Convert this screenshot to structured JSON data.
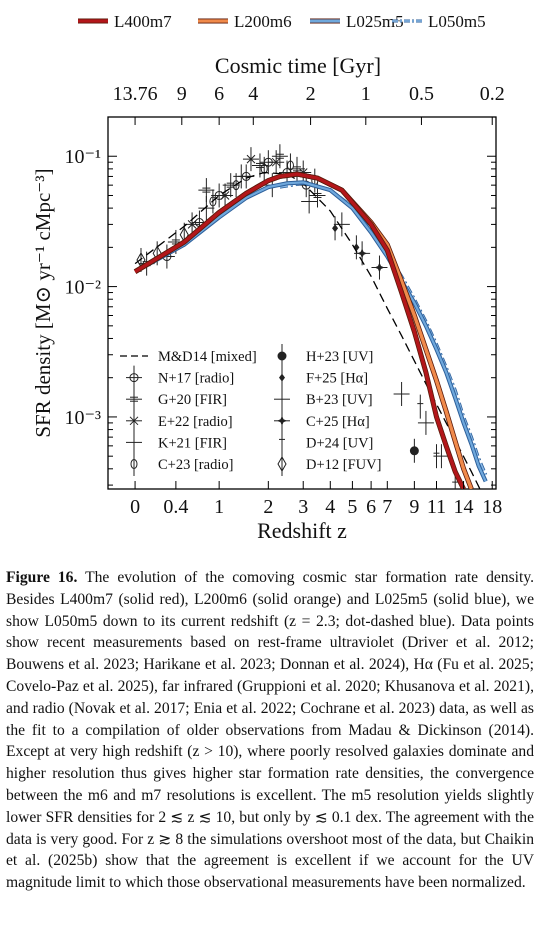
{
  "chart_data": {
    "type": "line",
    "xlabel": "Redshift z",
    "ylabel": "SFR density [M⊙ yr⁻¹ cMpc⁻³]",
    "top_axis_label": "Cosmic time [Gyr]",
    "yscale": "log",
    "xscale": "log(1+z)",
    "xlim": [
      -0.2,
      18.6
    ],
    "ylim": [
      0.00028,
      0.2
    ],
    "x_ticks": [
      "0",
      "0.4",
      "1",
      "2",
      "3",
      "4",
      "5",
      "6",
      "7",
      "9",
      "11",
      "14",
      "18"
    ],
    "x_tick_values": [
      0,
      0.4,
      1,
      2,
      3,
      4,
      5,
      6,
      7,
      9,
      11,
      14,
      18
    ],
    "y_ticks": [
      "10⁻³",
      "10⁻²",
      "10⁻¹"
    ],
    "y_tick_values": [
      0.001,
      0.01,
      0.1
    ],
    "top_ticks": [
      "13.76",
      "9",
      "6",
      "4",
      "2",
      "1",
      "0.5",
      "0.2"
    ],
    "top_tick_redshifts": [
      0,
      0.47,
      1.0,
      1.65,
      3.25,
      5.7,
      9.6,
      18.0
    ],
    "series": [
      {
        "name": "L400m7",
        "style": "solid",
        "color": "#b3161a",
        "x": [
          0,
          0.5,
          1,
          1.5,
          2,
          2.3,
          2.8,
          3.5,
          4.5,
          6,
          7,
          8,
          9,
          10,
          11,
          12,
          13,
          14
        ],
        "y": [
          0.013,
          0.022,
          0.037,
          0.052,
          0.065,
          0.07,
          0.073,
          0.068,
          0.055,
          0.03,
          0.019,
          0.009,
          0.0045,
          0.0022,
          0.001,
          0.0006,
          0.00038,
          0.00028
        ]
      },
      {
        "name": "L200m6",
        "style": "solid",
        "color": "#f08a4b",
        "x": [
          0,
          0.5,
          1,
          1.5,
          2,
          2.3,
          2.8,
          3.5,
          4.5,
          6,
          7,
          8,
          9,
          10,
          11,
          12,
          13,
          14,
          15
        ],
        "y": [
          0.013,
          0.022,
          0.037,
          0.052,
          0.065,
          0.07,
          0.073,
          0.068,
          0.055,
          0.031,
          0.021,
          0.011,
          0.006,
          0.0033,
          0.0019,
          0.0011,
          0.00065,
          0.0004,
          0.00028
        ]
      },
      {
        "name": "L025m5",
        "style": "solid",
        "color": "#6fa8dc",
        "x": [
          0,
          0.5,
          1,
          1.5,
          2,
          2.5,
          3,
          4,
          5,
          6,
          7,
          8,
          9,
          10,
          11,
          12,
          13,
          14,
          15,
          16,
          17
        ],
        "y": [
          0.013,
          0.021,
          0.034,
          0.048,
          0.058,
          0.062,
          0.063,
          0.055,
          0.04,
          0.026,
          0.017,
          0.011,
          0.0075,
          0.005,
          0.0033,
          0.0022,
          0.0014,
          0.0009,
          0.00062,
          0.00042,
          0.00032
        ]
      },
      {
        "name": "L050m5",
        "style": "dash-dot",
        "color": "#8bbbe8",
        "x": [
          2.3,
          3,
          4,
          5,
          6,
          7,
          8,
          9,
          10,
          11,
          12,
          13,
          14,
          15,
          16,
          17
        ],
        "y": [
          0.058,
          0.062,
          0.055,
          0.041,
          0.027,
          0.018,
          0.012,
          0.008,
          0.0054,
          0.0036,
          0.0024,
          0.0016,
          0.001,
          0.0007,
          0.00048,
          0.00036
        ]
      },
      {
        "name": "M&D14 [mixed]",
        "style": "dashed",
        "color": "#000000",
        "x": [
          0,
          0.5,
          1,
          1.5,
          1.9,
          2.5,
          3,
          4,
          5,
          6,
          7,
          8,
          10,
          12,
          15,
          18
        ],
        "y": [
          0.015,
          0.029,
          0.05,
          0.068,
          0.075,
          0.073,
          0.062,
          0.038,
          0.021,
          0.012,
          0.0068,
          0.0042,
          0.0018,
          0.0009,
          0.00038,
          0.00018
        ]
      }
    ],
    "observations": [
      {
        "name": "N+17 [radio]",
        "marker": "circle-plus",
        "points": [
          {
            "x": 0.3,
            "y": 0.017
          },
          {
            "x": 0.7,
            "y": 0.031
          },
          {
            "x": 1.0,
            "y": 0.05
          },
          {
            "x": 1.5,
            "y": 0.07
          },
          {
            "x": 2.0,
            "y": 0.09
          },
          {
            "x": 2.5,
            "y": 0.075
          },
          {
            "x": 3.1,
            "y": 0.06
          }
        ]
      },
      {
        "name": "G+20 [FIR]",
        "marker": "plus-bar",
        "points": [
          {
            "x": 0.1,
            "y": 0.015
          },
          {
            "x": 0.4,
            "y": 0.022
          },
          {
            "x": 0.8,
            "y": 0.055
          },
          {
            "x": 1.2,
            "y": 0.06
          },
          {
            "x": 1.8,
            "y": 0.085
          },
          {
            "x": 2.3,
            "y": 0.1
          },
          {
            "x": 2.8,
            "y": 0.08
          },
          {
            "x": 3.5,
            "y": 0.05
          }
        ]
      },
      {
        "name": "E+22 [radio]",
        "marker": "asterisk",
        "points": [
          {
            "x": 0.6,
            "y": 0.03
          },
          {
            "x": 1.1,
            "y": 0.05
          },
          {
            "x": 1.6,
            "y": 0.095
          },
          {
            "x": 2.2,
            "y": 0.09
          },
          {
            "x": 3.0,
            "y": 0.075
          }
        ]
      },
      {
        "name": "K+21 [FIR]",
        "marker": "plus",
        "points": [
          {
            "x": 0.8,
            "y": 0.04
          },
          {
            "x": 1.4,
            "y": 0.07
          },
          {
            "x": 2.1,
            "y": 0.06
          },
          {
            "x": 3.2,
            "y": 0.045
          },
          {
            "x": 4.5,
            "y": 0.03
          }
        ]
      },
      {
        "name": "C+23 [radio]",
        "marker": "circle-bar",
        "points": [
          {
            "x": 0.9,
            "y": 0.045
          },
          {
            "x": 1.3,
            "y": 0.06
          },
          {
            "x": 1.9,
            "y": 0.08
          },
          {
            "x": 2.6,
            "y": 0.085
          },
          {
            "x": 3.4,
            "y": 0.065
          }
        ]
      },
      {
        "name": "H+23 [UV]",
        "marker": "circle-dot",
        "points": [
          {
            "x": 9.0,
            "y": 0.00055
          },
          {
            "x": 12.0,
            "y": 0.0002
          }
        ]
      },
      {
        "name": "F+25 [Hα]",
        "marker": "diamond-small",
        "points": [
          {
            "x": 4.2,
            "y": 0.028
          },
          {
            "x": 5.2,
            "y": 0.02
          }
        ]
      },
      {
        "name": "B+23 [UV]",
        "marker": "plus",
        "points": [
          {
            "x": 8.0,
            "y": 0.0015
          },
          {
            "x": 10.0,
            "y": 0.0009
          },
          {
            "x": 11.5,
            "y": 0.0005
          }
        ]
      },
      {
        "name": "C+25 [Hα]",
        "marker": "star",
        "points": [
          {
            "x": 5.5,
            "y": 0.018
          },
          {
            "x": 6.5,
            "y": 0.014
          }
        ]
      },
      {
        "name": "D+24 [UV]",
        "marker": "dagger",
        "points": [
          {
            "x": 9.5,
            "y": 0.0012
          },
          {
            "x": 11.0,
            "y": 0.0005
          },
          {
            "x": 13.0,
            "y": 0.0003
          }
        ]
      },
      {
        "name": "D+12 [FUV]",
        "marker": "diamond",
        "points": [
          {
            "x": 0.05,
            "y": 0.016
          },
          {
            "x": 0.2,
            "y": 0.018
          },
          {
            "x": 0.5,
            "y": 0.025
          }
        ]
      }
    ],
    "legend_top": [
      "L400m7",
      "L200m6",
      "L025m5",
      "L050m5"
    ],
    "legend_inner_left": [
      "M&D14 [mixed]",
      "N+17 [radio]",
      "G+20 [FIR]",
      "E+22 [radio]",
      "K+21 [FIR]",
      "C+23 [radio]"
    ],
    "legend_inner_right": [
      "H+23 [UV]",
      "F+25 [Hα]",
      "B+23 [UV]",
      "C+25 [Hα]",
      "D+24 [UV]",
      "D+12 [FUV]"
    ],
    "legend_placement": "top (outside) and lower-left (inside)",
    "grid": false
  },
  "caption": {
    "label": "Figure 16.",
    "text": "The evolution of the comoving cosmic star formation rate density. Besides L400m7 (solid red), L200m6 (solid orange) and L025m5 (solid blue), we show L050m5 down to its current redshift (z = 2.3; dot-dashed blue). Data points show recent measurements based on rest-frame ultraviolet (Driver et al. 2012; Bouwens et al. 2023; Harikane et al. 2023; Donnan et al. 2024), Hα (Fu et al. 2025; Covelo-Paz et al. 2025), far infrared (Gruppioni et al. 2020; Khusanova et al. 2021), and radio (Novak et al. 2017; Enia et al. 2022; Cochrane et al. 2023) data, as well as the fit to a compilation of older observations from Madau & Dickinson (2014). Except at very high redshift (z > 10), where poorly resolved galaxies dominate and higher resolution thus gives higher star formation rate densities, the convergence between the m6 and m7 resolutions is excellent. The m5 resolution yields slightly lower SFR densities for 2 ≲ z ≲ 10, but only by ≲ 0.1 dex. The agreement with the data is very good. For z ≳ 8 the simulations overshoot most of the data, but Chaikin et al. (2025b) show that the agreement is excellent if we account for the UV magnitude limit to which those observational measurements have been normalized."
  }
}
